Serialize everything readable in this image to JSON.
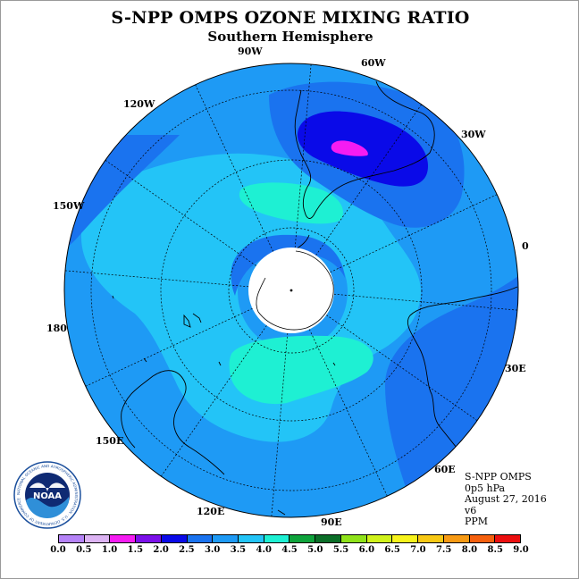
{
  "title": "S-NPP OMPS OZONE MIXING RATIO",
  "subtitle": "Southern Hemisphere",
  "longitude_labels": {
    "lon_90W": "90W",
    "lon_60W": "60W",
    "lon_120W": "120W",
    "lon_30W": "30W",
    "lon_150W": "150W",
    "lon_0": "0",
    "lon_180": "180",
    "lon_30E": "30E",
    "lon_150E": "150E",
    "lon_60E": "60E",
    "lon_120E": "120E",
    "lon_90E": "90E"
  },
  "info": {
    "instrument": "S-NPP OMPS",
    "level": "0p5 hPa",
    "date": "August 27, 2016",
    "version": "v6",
    "units": "PPM"
  },
  "logo": {
    "text": "NOAA",
    "ring_text": "NATIONAL OCEANIC AND ATMOSPHERIC ADMINISTRATION · U.S. DEPARTMENT OF COMMERCE"
  },
  "colorbar": {
    "ticks": [
      "0.0",
      "0.5",
      "1.0",
      "1.5",
      "2.0",
      "2.5",
      "3.0",
      "3.5",
      "4.0",
      "4.5",
      "5.0",
      "5.5",
      "6.0",
      "6.5",
      "7.0",
      "7.5",
      "8.0",
      "8.5",
      "9.0"
    ],
    "colors": [
      "#b583f7",
      "#dcb3f3",
      "#f51cf2",
      "#7b10e9",
      "#0a0ae8",
      "#1a73ef",
      "#1e9af5",
      "#23c4f7",
      "#1ef0d3",
      "#0fa33c",
      "#0b6e28",
      "#8fe21a",
      "#d0f21b",
      "#f7f31b",
      "#f7c814",
      "#f79a14",
      "#f5600e",
      "#eb0f0f",
      "#7d5a3c"
    ]
  },
  "map_colors": {
    "band_2_0_2_5": "#1a73ef",
    "band_2_5_3_0": "#1e9af5",
    "band_3_0_3_5": "#23c4f7",
    "band_3_5_4_0": "#1ef0d3",
    "band_1_5_2_0": "#0a0ae8",
    "band_1_0_1_5": "#f51cf2"
  }
}
